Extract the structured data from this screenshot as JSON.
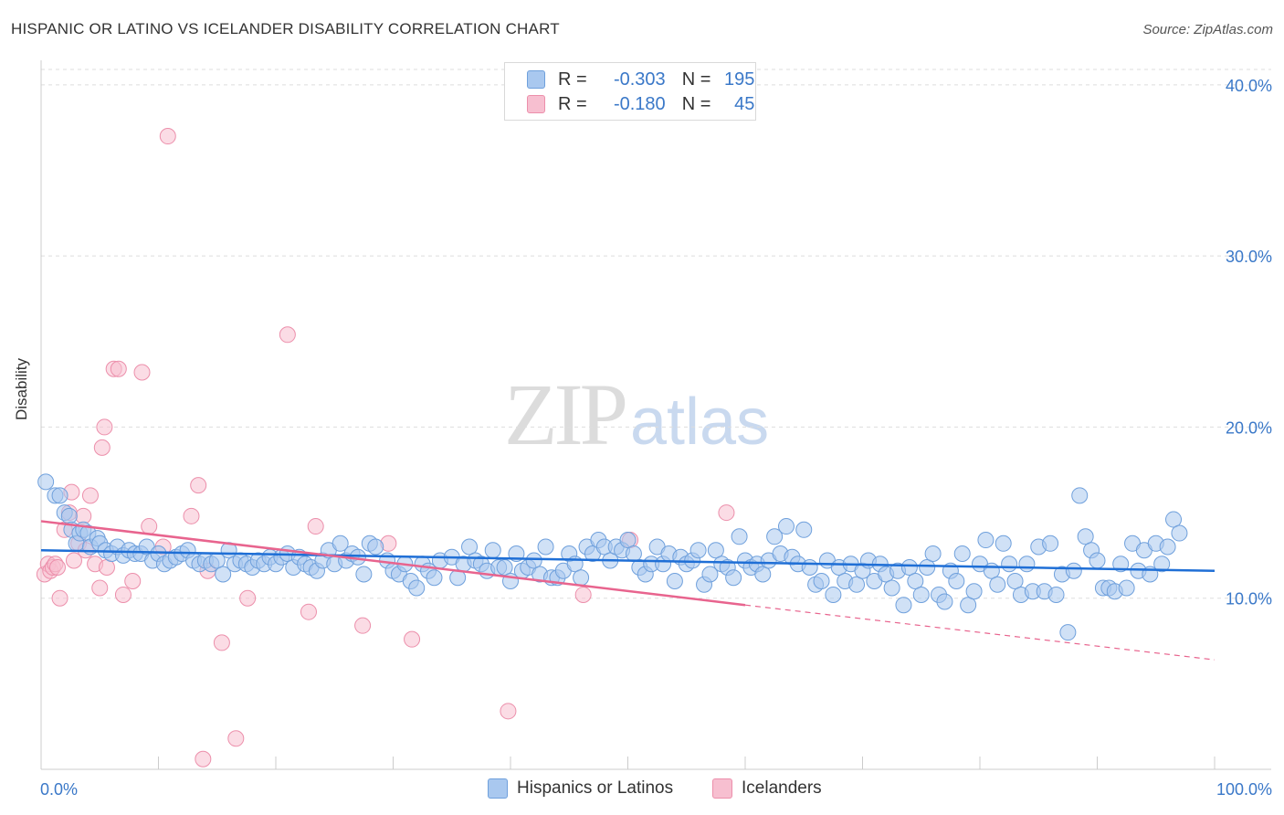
{
  "header": {
    "title": "HISPANIC OR LATINO VS ICELANDER DISABILITY CORRELATION CHART",
    "source": "Source: ZipAtlas.com"
  },
  "watermark": {
    "zip": "ZIP",
    "atlas": "atlas"
  },
  "stats": {
    "rows": [
      {
        "r_label": "R =",
        "r_value": "-0.303",
        "n_label": "N =",
        "n_value": "195"
      },
      {
        "r_label": "R =",
        "r_value": "-0.180",
        "n_label": "N =",
        "n_value": "45"
      }
    ]
  },
  "legend": {
    "items": [
      {
        "label": "Hispanics or Latinos"
      },
      {
        "label": "Icelanders"
      }
    ]
  },
  "colors": {
    "blue_fill": "#a9c8ef",
    "blue_stroke": "#6fa0dc",
    "blue_line": "#1f6fd6",
    "pink_fill": "#f7bfd0",
    "pink_stroke": "#ec8fab",
    "pink_line": "#e8648e",
    "tick_text": "#3a78c8",
    "grid": "#dddddd"
  },
  "chart_data": {
    "type": "scatter",
    "title": "HISPANIC OR LATINO VS ICELANDER DISABILITY CORRELATION CHART",
    "xlabel": "",
    "ylabel": "Disability",
    "xlim": [
      0,
      100
    ],
    "ylim": [
      0,
      40.9
    ],
    "x_tick_labels": [
      "0.0%",
      "100.0%"
    ],
    "y_ticks": [
      10,
      20,
      30,
      40
    ],
    "y_tick_labels": [
      "10.0%",
      "20.0%",
      "30.0%",
      "40.0%"
    ],
    "grid": true,
    "legend_position": "bottom-center",
    "series": [
      {
        "name": "Hispanics or Latinos",
        "trend": {
          "x": [
            0,
            100
          ],
          "y": [
            12.8,
            11.6
          ],
          "style": "solid"
        },
        "points": [
          [
            0.4,
            16.8
          ],
          [
            1.2,
            16.0
          ],
          [
            1.6,
            16.0
          ],
          [
            2.0,
            15.0
          ],
          [
            2.4,
            14.8
          ],
          [
            2.6,
            14.0
          ],
          [
            3.0,
            13.2
          ],
          [
            3.3,
            13.8
          ],
          [
            3.6,
            14.0
          ],
          [
            4.0,
            13.8
          ],
          [
            4.2,
            13.0
          ],
          [
            4.8,
            13.5
          ],
          [
            5.0,
            13.2
          ],
          [
            5.5,
            12.8
          ],
          [
            6.0,
            12.6
          ],
          [
            6.5,
            13.0
          ],
          [
            7.0,
            12.5
          ],
          [
            7.5,
            12.8
          ],
          [
            8.0,
            12.6
          ],
          [
            8.5,
            12.6
          ],
          [
            9.0,
            13.0
          ],
          [
            9.5,
            12.2
          ],
          [
            10.0,
            12.6
          ],
          [
            10.5,
            12.0
          ],
          [
            11.0,
            12.2
          ],
          [
            11.5,
            12.4
          ],
          [
            12.0,
            12.6
          ],
          [
            12.5,
            12.8
          ],
          [
            13.0,
            12.2
          ],
          [
            13.5,
            12.0
          ],
          [
            14.0,
            12.2
          ],
          [
            14.5,
            12.0
          ],
          [
            15.0,
            12.2
          ],
          [
            15.5,
            11.4
          ],
          [
            16.0,
            12.8
          ],
          [
            16.5,
            12.0
          ],
          [
            17.0,
            12.2
          ],
          [
            17.5,
            12.0
          ],
          [
            18.0,
            11.8
          ],
          [
            18.5,
            12.2
          ],
          [
            19.0,
            12.0
          ],
          [
            19.5,
            12.4
          ],
          [
            20.0,
            12.0
          ],
          [
            20.5,
            12.4
          ],
          [
            21.0,
            12.6
          ],
          [
            21.5,
            11.8
          ],
          [
            22.0,
            12.4
          ],
          [
            22.5,
            12.0
          ],
          [
            23.0,
            11.8
          ],
          [
            23.5,
            11.6
          ],
          [
            24.0,
            12.2
          ],
          [
            24.5,
            12.8
          ],
          [
            25.0,
            12.0
          ],
          [
            25.5,
            13.2
          ],
          [
            26.0,
            12.2
          ],
          [
            26.5,
            12.6
          ],
          [
            27.0,
            12.4
          ],
          [
            27.5,
            11.4
          ],
          [
            28.0,
            13.2
          ],
          [
            28.5,
            13.0
          ],
          [
            29.5,
            12.2
          ],
          [
            30.0,
            11.6
          ],
          [
            30.5,
            11.4
          ],
          [
            31.0,
            12.0
          ],
          [
            31.5,
            11.0
          ],
          [
            32.0,
            10.6
          ],
          [
            32.5,
            12.0
          ],
          [
            33.0,
            11.6
          ],
          [
            33.5,
            11.2
          ],
          [
            34.0,
            12.2
          ],
          [
            35.0,
            12.4
          ],
          [
            35.5,
            11.2
          ],
          [
            36.0,
            12.0
          ],
          [
            36.5,
            13.0
          ],
          [
            37.0,
            12.2
          ],
          [
            37.5,
            12.0
          ],
          [
            38.0,
            11.6
          ],
          [
            38.5,
            12.8
          ],
          [
            39.0,
            11.8
          ],
          [
            39.5,
            11.8
          ],
          [
            40.0,
            11.0
          ],
          [
            40.5,
            12.6
          ],
          [
            41.0,
            11.6
          ],
          [
            41.5,
            11.8
          ],
          [
            42.0,
            12.2
          ],
          [
            42.5,
            11.4
          ],
          [
            43.0,
            13.0
          ],
          [
            43.5,
            11.2
          ],
          [
            44.0,
            11.2
          ],
          [
            44.5,
            11.6
          ],
          [
            45.0,
            12.6
          ],
          [
            45.5,
            12.0
          ],
          [
            46.0,
            11.2
          ],
          [
            46.5,
            13.0
          ],
          [
            47.0,
            12.6
          ],
          [
            47.5,
            13.4
          ],
          [
            48.0,
            13.0
          ],
          [
            48.5,
            12.2
          ],
          [
            49.0,
            13.0
          ],
          [
            49.5,
            12.8
          ],
          [
            50.0,
            13.4
          ],
          [
            50.5,
            12.6
          ],
          [
            51.0,
            11.8
          ],
          [
            51.5,
            11.4
          ],
          [
            52.0,
            12.0
          ],
          [
            52.5,
            13.0
          ],
          [
            53.0,
            12.0
          ],
          [
            53.5,
            12.6
          ],
          [
            54.0,
            11.0
          ],
          [
            54.5,
            12.4
          ],
          [
            55.0,
            12.0
          ],
          [
            55.5,
            12.2
          ],
          [
            56.0,
            12.8
          ],
          [
            56.5,
            10.8
          ],
          [
            57.0,
            11.4
          ],
          [
            57.5,
            12.8
          ],
          [
            58.0,
            12.0
          ],
          [
            58.5,
            11.8
          ],
          [
            59.0,
            11.2
          ],
          [
            59.5,
            13.6
          ],
          [
            60.0,
            12.2
          ],
          [
            60.5,
            11.8
          ],
          [
            61.0,
            12.0
          ],
          [
            61.5,
            11.4
          ],
          [
            62.0,
            12.2
          ],
          [
            62.5,
            13.6
          ],
          [
            63.0,
            12.6
          ],
          [
            63.5,
            14.2
          ],
          [
            64.0,
            12.4
          ],
          [
            64.5,
            12.0
          ],
          [
            65.0,
            14.0
          ],
          [
            65.5,
            11.8
          ],
          [
            66.0,
            10.8
          ],
          [
            66.5,
            11.0
          ],
          [
            67.0,
            12.2
          ],
          [
            67.5,
            10.2
          ],
          [
            68.0,
            11.8
          ],
          [
            68.5,
            11.0
          ],
          [
            69.0,
            12.0
          ],
          [
            69.5,
            10.8
          ],
          [
            70.0,
            11.6
          ],
          [
            70.5,
            12.2
          ],
          [
            71.0,
            11.0
          ],
          [
            71.5,
            12.0
          ],
          [
            72.0,
            11.4
          ],
          [
            72.5,
            10.6
          ],
          [
            73.0,
            11.6
          ],
          [
            73.5,
            9.6
          ],
          [
            74.0,
            11.8
          ],
          [
            74.5,
            11.0
          ],
          [
            75.0,
            10.2
          ],
          [
            75.5,
            11.8
          ],
          [
            76.0,
            12.6
          ],
          [
            76.5,
            10.2
          ],
          [
            77.0,
            9.8
          ],
          [
            77.5,
            11.6
          ],
          [
            78.0,
            11.0
          ],
          [
            78.5,
            12.6
          ],
          [
            79.0,
            9.6
          ],
          [
            79.5,
            10.4
          ],
          [
            80.0,
            12.0
          ],
          [
            80.5,
            13.4
          ],
          [
            81.0,
            11.6
          ],
          [
            81.5,
            10.8
          ],
          [
            82.0,
            13.2
          ],
          [
            82.5,
            12.0
          ],
          [
            83.0,
            11.0
          ],
          [
            83.5,
            10.2
          ],
          [
            84.0,
            12.0
          ],
          [
            84.5,
            10.4
          ],
          [
            85.0,
            13.0
          ],
          [
            85.5,
            10.4
          ],
          [
            86.0,
            13.2
          ],
          [
            86.5,
            10.2
          ],
          [
            87.0,
            11.4
          ],
          [
            87.5,
            8.0
          ],
          [
            88.0,
            11.6
          ],
          [
            88.5,
            16.0
          ],
          [
            89.0,
            13.6
          ],
          [
            89.5,
            12.8
          ],
          [
            90.0,
            12.2
          ],
          [
            90.5,
            10.6
          ],
          [
            91.0,
            10.6
          ],
          [
            91.5,
            10.4
          ],
          [
            92.0,
            12.0
          ],
          [
            92.5,
            10.6
          ],
          [
            93.0,
            13.2
          ],
          [
            93.5,
            11.6
          ],
          [
            94.0,
            12.8
          ],
          [
            94.5,
            11.4
          ],
          [
            95.0,
            13.2
          ],
          [
            95.5,
            12.0
          ],
          [
            96.0,
            13.0
          ],
          [
            96.5,
            14.6
          ],
          [
            97.0,
            13.8
          ]
        ]
      },
      {
        "name": "Icelanders",
        "trend": {
          "x": [
            0,
            60
          ],
          "y": [
            14.5,
            9.6
          ],
          "style": "solid",
          "dashed_extension": {
            "x": [
              60,
              100
            ],
            "y": [
              9.6,
              6.4
            ]
          }
        },
        "points": [
          [
            0.3,
            11.4
          ],
          [
            0.6,
            12.0
          ],
          [
            0.8,
            11.6
          ],
          [
            1.0,
            11.8
          ],
          [
            1.2,
            12.0
          ],
          [
            1.4,
            11.8
          ],
          [
            1.6,
            10.0
          ],
          [
            2.0,
            14.0
          ],
          [
            2.4,
            15.0
          ],
          [
            2.6,
            16.2
          ],
          [
            2.8,
            12.2
          ],
          [
            3.2,
            13.2
          ],
          [
            3.6,
            14.8
          ],
          [
            3.8,
            12.8
          ],
          [
            4.2,
            16.0
          ],
          [
            4.6,
            12.0
          ],
          [
            5.0,
            10.6
          ],
          [
            5.4,
            20.0
          ],
          [
            5.2,
            18.8
          ],
          [
            5.6,
            11.8
          ],
          [
            6.2,
            23.4
          ],
          [
            6.6,
            23.4
          ],
          [
            7.0,
            10.2
          ],
          [
            7.8,
            11.0
          ],
          [
            8.6,
            23.2
          ],
          [
            9.2,
            14.2
          ],
          [
            10.4,
            13.0
          ],
          [
            10.8,
            37.0
          ],
          [
            12.8,
            14.8
          ],
          [
            13.4,
            16.6
          ],
          [
            13.8,
            0.6
          ],
          [
            14.2,
            11.6
          ],
          [
            15.4,
            7.4
          ],
          [
            16.6,
            1.8
          ],
          [
            17.6,
            10.0
          ],
          [
            21.0,
            25.4
          ],
          [
            22.8,
            9.2
          ],
          [
            23.4,
            14.2
          ],
          [
            27.4,
            8.4
          ],
          [
            29.6,
            13.2
          ],
          [
            31.6,
            7.6
          ],
          [
            39.8,
            3.4
          ],
          [
            46.2,
            10.2
          ],
          [
            50.2,
            13.4
          ],
          [
            58.4,
            15.0
          ]
        ]
      }
    ]
  }
}
